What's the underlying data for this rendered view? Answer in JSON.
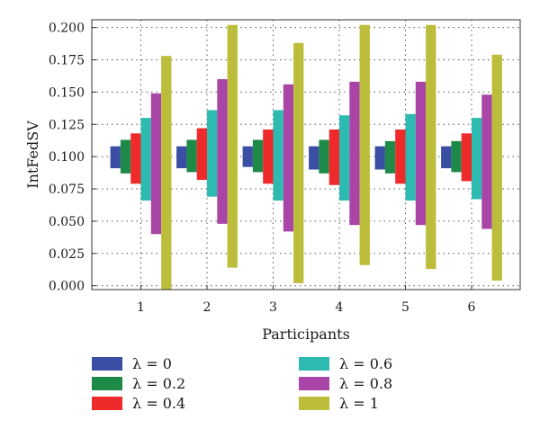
{
  "chart_data": {
    "type": "bar",
    "subtype": "floating-range",
    "title": "",
    "xlabel": "Participants",
    "ylabel": "IntFedSV",
    "categories": [
      "1",
      "2",
      "3",
      "4",
      "5",
      "6"
    ],
    "ylim": [
      -0.003,
      0.206
    ],
    "yticks": [
      0.0,
      0.025,
      0.05,
      0.075,
      0.1,
      0.125,
      0.15,
      0.175,
      0.2
    ],
    "ytick_labels": [
      "0.000",
      "0.025",
      "0.050",
      "0.075",
      "0.100",
      "0.125",
      "0.150",
      "0.175",
      "0.200"
    ],
    "grid": true,
    "legend_position": "bottom",
    "series": [
      {
        "name": "λ = 0",
        "color": "#3a4fa3",
        "ranges": [
          [
            0.091,
            0.108
          ],
          [
            0.091,
            0.108
          ],
          [
            0.092,
            0.108
          ],
          [
            0.09,
            0.108
          ],
          [
            0.09,
            0.108
          ],
          [
            0.091,
            0.108
          ]
        ]
      },
      {
        "name": "λ = 0.2",
        "color": "#1d8a47",
        "ranges": [
          [
            0.087,
            0.113
          ],
          [
            0.088,
            0.113
          ],
          [
            0.088,
            0.113
          ],
          [
            0.087,
            0.113
          ],
          [
            0.087,
            0.112
          ],
          [
            0.088,
            0.112
          ]
        ]
      },
      {
        "name": "λ = 0.4",
        "color": "#ee2a2a",
        "ranges": [
          [
            0.079,
            0.118
          ],
          [
            0.082,
            0.122
          ],
          [
            0.079,
            0.121
          ],
          [
            0.078,
            0.121
          ],
          [
            0.079,
            0.121
          ],
          [
            0.081,
            0.118
          ]
        ]
      },
      {
        "name": "λ = 0.6",
        "color": "#2dbab1",
        "ranges": [
          [
            0.066,
            0.13
          ],
          [
            0.069,
            0.136
          ],
          [
            0.066,
            0.136
          ],
          [
            0.066,
            0.132
          ],
          [
            0.066,
            0.133
          ],
          [
            0.067,
            0.13
          ]
        ]
      },
      {
        "name": "λ = 0.8",
        "color": "#a845a6",
        "ranges": [
          [
            0.04,
            0.149
          ],
          [
            0.048,
            0.16
          ],
          [
            0.042,
            0.156
          ],
          [
            0.047,
            0.158
          ],
          [
            0.047,
            0.158
          ],
          [
            0.044,
            0.148
          ]
        ]
      },
      {
        "name": "λ = 1",
        "color": "#bcbd3a",
        "ranges": [
          [
            -0.003,
            0.178
          ],
          [
            0.014,
            0.202
          ],
          [
            0.002,
            0.188
          ],
          [
            0.016,
            0.202
          ],
          [
            0.013,
            0.202
          ],
          [
            0.004,
            0.179
          ]
        ]
      }
    ]
  }
}
